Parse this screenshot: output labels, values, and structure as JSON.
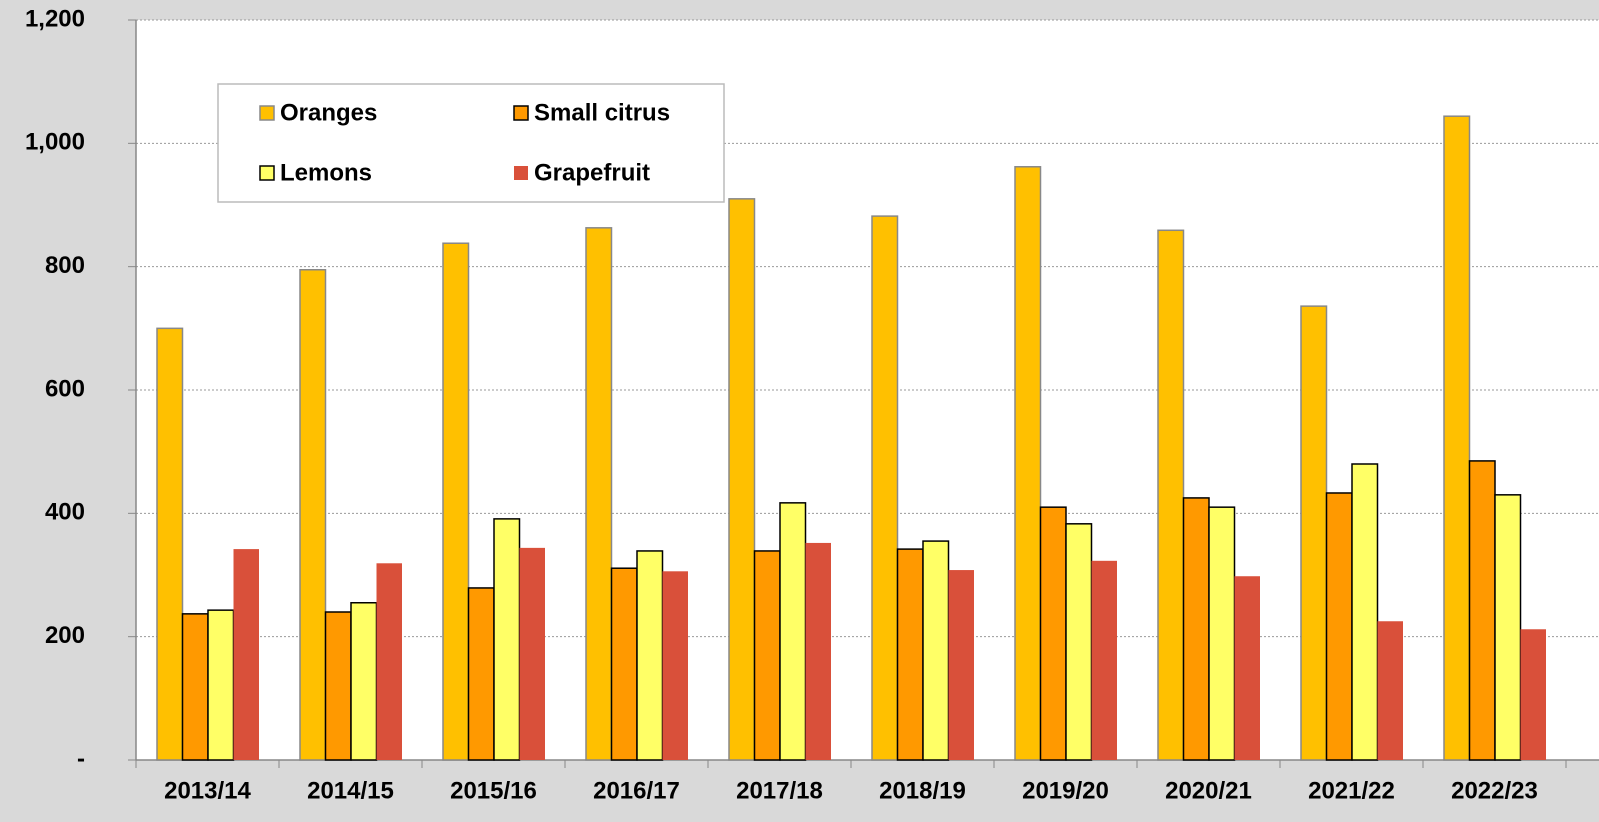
{
  "chart_data": {
    "type": "bar",
    "categories": [
      "2013/14",
      "2014/15",
      "2015/16",
      "2016/17",
      "2017/18",
      "2018/19",
      "2019/20",
      "2020/21",
      "2021/22",
      "2022/23"
    ],
    "series": [
      {
        "name": "Oranges",
        "color": "#FFC000",
        "values": [
          700,
          795,
          838,
          863,
          910,
          882,
          962,
          859,
          736,
          1044
        ]
      },
      {
        "name": "Small citrus",
        "color": "#FF9900",
        "values": [
          237,
          240,
          279,
          311,
          339,
          342,
          410,
          425,
          433,
          485
        ]
      },
      {
        "name": "Lemons",
        "color": "#FFFF66",
        "values": [
          243,
          255,
          391,
          339,
          417,
          355,
          383,
          410,
          480,
          430
        ]
      },
      {
        "name": "Grapefruit",
        "color": "#D9503A",
        "values": [
          342,
          319,
          344,
          306,
          352,
          308,
          323,
          298,
          225,
          212
        ]
      }
    ],
    "ylim": [
      0,
      1200
    ],
    "yticks": [
      {
        "value": 0,
        "label": "-"
      },
      200,
      400,
      600,
      800,
      {
        "value": 1000,
        "label": "1,000"
      },
      {
        "value": 1200,
        "label": "1,200"
      }
    ],
    "grid": true,
    "legend": "upper left"
  }
}
